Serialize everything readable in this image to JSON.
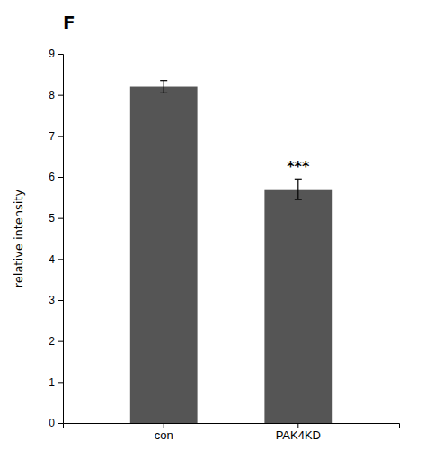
{
  "chart_data": {
    "type": "bar",
    "title": "F",
    "categories": [
      "con",
      "PAK4KD"
    ],
    "values": [
      8.2,
      5.7
    ],
    "errors": [
      0.15,
      0.25
    ],
    "color": "#555555",
    "ylabel": "relative intensity",
    "ylim": [
      0,
      9
    ],
    "yticks": [
      0,
      1,
      2,
      3,
      4,
      5,
      6,
      7,
      8,
      9
    ],
    "annotations": [
      {
        "text": "***",
        "x": "PAK4KD"
      }
    ]
  }
}
